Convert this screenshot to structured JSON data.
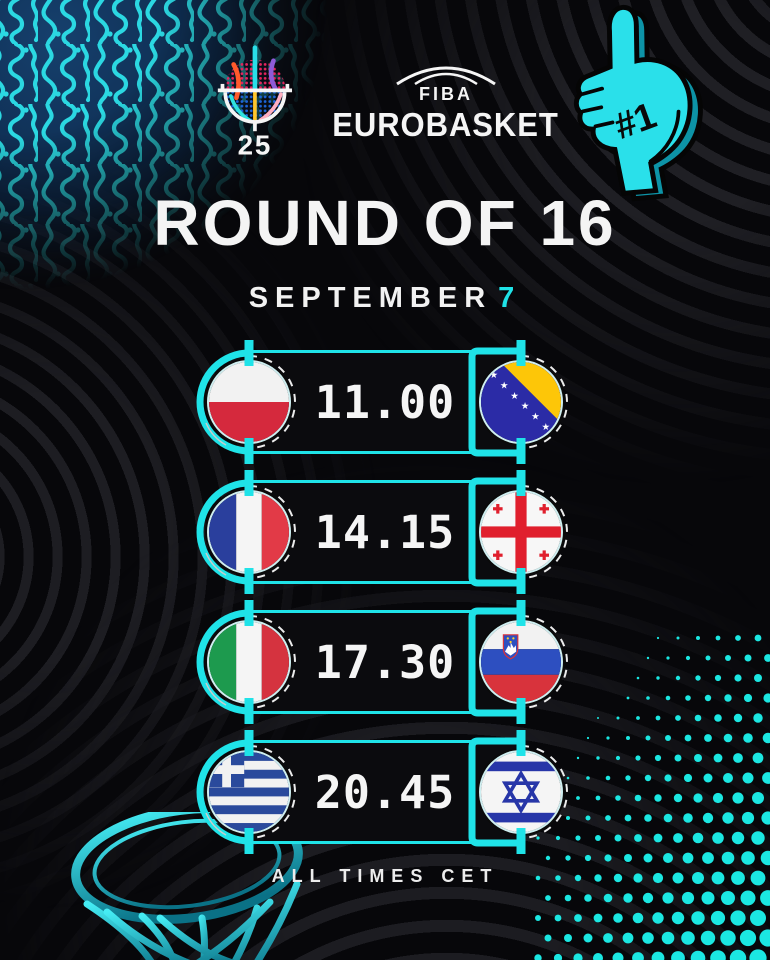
{
  "accent_color": "#1FE3E8",
  "header": {
    "logo_name": "eurobasket-25-trophy-logo",
    "logo_number": "25",
    "brand_top": "FIBA",
    "brand_main": "EUROBASKET"
  },
  "title": "ROUND OF 16",
  "subtitle": {
    "text": "SEPTEMBER",
    "day": "7"
  },
  "matches": [
    {
      "home_team": "Poland",
      "home_flag": "poland-flag",
      "time": "11.00",
      "away_team": "Bosnia and Herzegovina",
      "away_flag": "bosnia-and-herzegovina-flag"
    },
    {
      "home_team": "France",
      "home_flag": "france-flag",
      "time": "14.15",
      "away_team": "Georgia",
      "away_flag": "georgia-flag"
    },
    {
      "home_team": "Italy",
      "home_flag": "italy-flag",
      "time": "17.30",
      "away_team": "Slovenia",
      "away_flag": "slovenia-flag"
    },
    {
      "home_team": "Greece",
      "home_flag": "greece-flag",
      "time": "20.45",
      "away_team": "Israel",
      "away_flag": "israel-flag"
    }
  ],
  "footer": {
    "note": "ALL TIMES CET"
  },
  "decorations": {
    "foam_finger": "foam-finger-number-one",
    "foam_finger_label": "#1",
    "top_left": "maze-squiggle-pattern",
    "bottom_left": "basketball-hoop-net",
    "bottom_right": "halftone-dots-pattern"
  }
}
